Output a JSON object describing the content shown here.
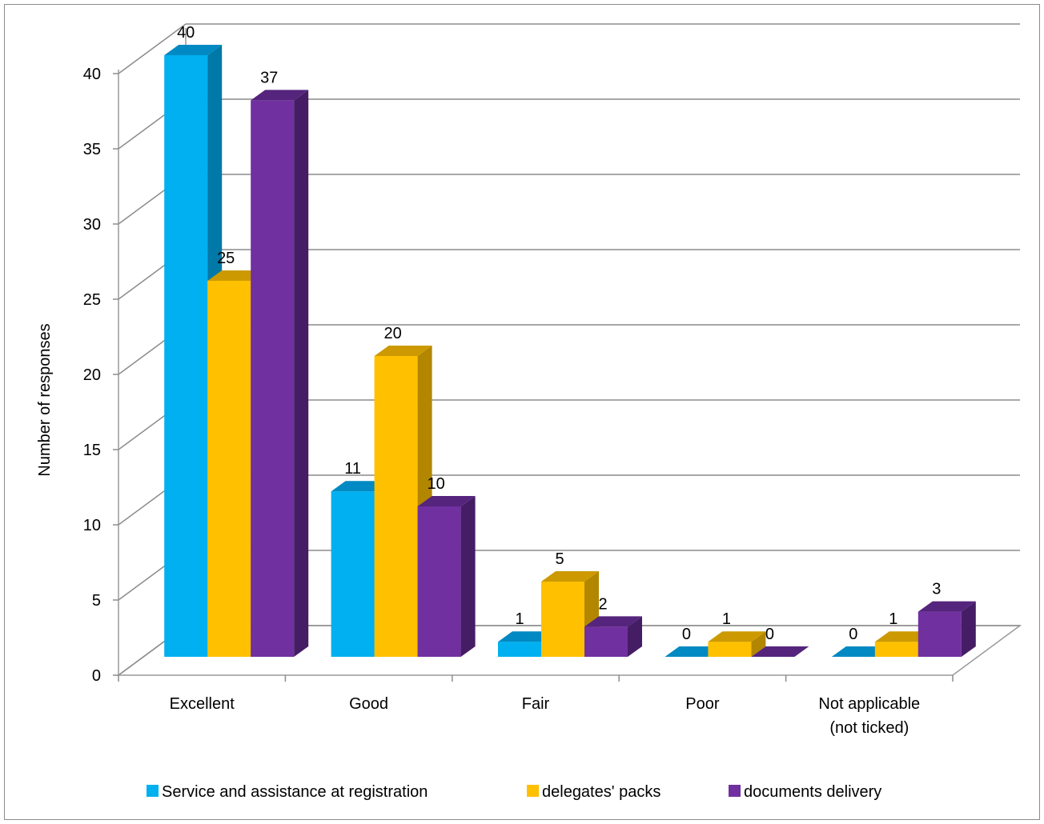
{
  "chart_data": {
    "type": "bar",
    "title": "",
    "xlabel": "",
    "ylabel": "Number of responses",
    "ylim": [
      0,
      40
    ],
    "yticks": [
      0,
      5,
      10,
      15,
      20,
      25,
      30,
      35,
      40
    ],
    "grid": true,
    "legend_position": "bottom",
    "categories": [
      "Excellent",
      "Good",
      "Fair",
      "Poor",
      "Not applicable (not ticked)"
    ],
    "category_display": [
      [
        "Excellent"
      ],
      [
        "Good"
      ],
      [
        "Fair"
      ],
      [
        "Poor"
      ],
      [
        "Not applicable",
        "(not ticked)"
      ]
    ],
    "series": [
      {
        "name": "Service and assistance at registration",
        "values": [
          40,
          11,
          1,
          0,
          0
        ],
        "color": "#00b0f0",
        "side_color": "#0078a8",
        "top_color": "#0089c2"
      },
      {
        "name": "delegates' packs",
        "values": [
          25,
          20,
          5,
          1,
          1
        ],
        "color": "#ffc000",
        "side_color": "#b38600",
        "top_color": "#cc9a00"
      },
      {
        "name": "documents delivery",
        "values": [
          37,
          10,
          2,
          0,
          3
        ],
        "color": "#7030a0",
        "side_color": "#451d64",
        "top_color": "#55247c"
      }
    ]
  }
}
